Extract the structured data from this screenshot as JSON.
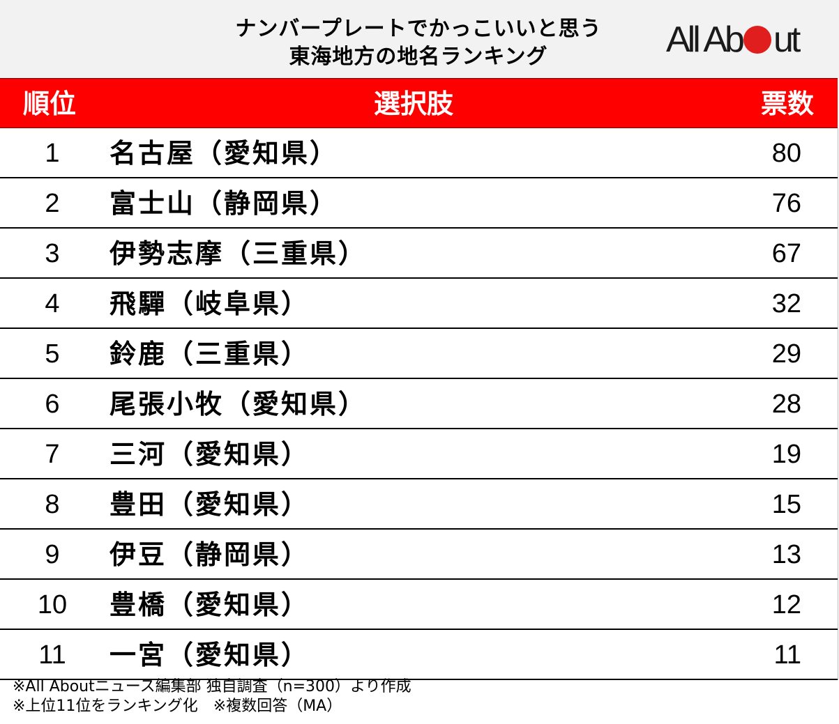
{
  "header": {
    "title_line1": "ナンバープレートでかっこいいと思う",
    "title_line2": "東海地方の地名ランキング",
    "logo": {
      "text_before": "All Ab",
      "text_after": "ut",
      "dot_color": "#e01e1e"
    }
  },
  "table": {
    "columns": {
      "rank": "順位",
      "choice": "選択肢",
      "votes": "票数"
    },
    "header_color": "#ff0000",
    "rows": [
      {
        "rank": "1",
        "choice": "名古屋（愛知県）",
        "votes": "80"
      },
      {
        "rank": "2",
        "choice": "富士山（静岡県）",
        "votes": "76"
      },
      {
        "rank": "3",
        "choice": "伊勢志摩（三重県）",
        "votes": "67"
      },
      {
        "rank": "4",
        "choice": "飛驒（岐阜県）",
        "votes": "32"
      },
      {
        "rank": "5",
        "choice": "鈴鹿（三重県）",
        "votes": "29"
      },
      {
        "rank": "6",
        "choice": "尾張小牧（愛知県）",
        "votes": "28"
      },
      {
        "rank": "7",
        "choice": "三河（愛知県）",
        "votes": "19"
      },
      {
        "rank": "8",
        "choice": "豊田（愛知県）",
        "votes": "15"
      },
      {
        "rank": "9",
        "choice": "伊豆（静岡県）",
        "votes": "13"
      },
      {
        "rank": "10",
        "choice": "豊橋（愛知県）",
        "votes": "12"
      },
      {
        "rank": "11",
        "choice": "一宮（愛知県）",
        "votes": "11"
      }
    ]
  },
  "footer": {
    "note1": "※All Aboutニュース編集部 独自調査（n=300）より作成",
    "note2": "※上位11位をランキング化　※複数回答（MA）"
  }
}
